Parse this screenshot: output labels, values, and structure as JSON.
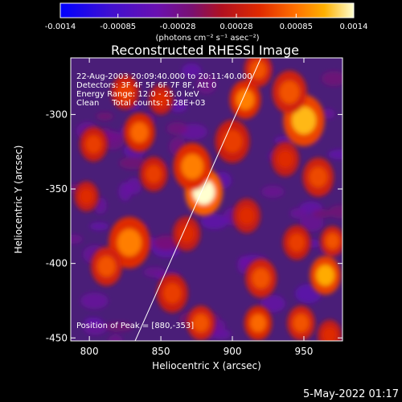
{
  "colorbar": {
    "ticks": [
      "-0.0014",
      "-0.00085",
      "-0.00028",
      "0.00028",
      "0.00085",
      "0.0014"
    ],
    "tick_values": [
      -0.0014,
      -0.00085,
      -0.00028,
      0.00028,
      0.00085,
      0.0014
    ],
    "range": [
      -0.0014,
      0.0014
    ],
    "unit_label": "(photons cm⁻² s⁻¹ asec⁻²)"
  },
  "plot": {
    "title": "Reconstructed RHESSI Image",
    "info_lines": [
      "22-Aug-2003 20:09:40.000 to 20:11:40.000",
      "Detectors: 3F 4F 5F 6F 7F 8F, Att 0",
      "Energy Range: 12.0 - 25.0 keV",
      "Clean     Total counts: 1.28E+03"
    ],
    "peak_text": "Position of Peak = [880,-353]"
  },
  "chart_data": {
    "type": "heatmap",
    "title": "Reconstructed RHESSI Image",
    "xlabel": "Heliocentric X (arcsec)",
    "ylabel": "Heliocentric Y (arcsec)",
    "xlim": [
      787,
      977
    ],
    "ylim": [
      -452,
      -262
    ],
    "x_ticks": [
      800,
      850,
      900,
      950
    ],
    "y_ticks": [
      -300,
      -350,
      -400,
      -450
    ],
    "x_tick_labels": [
      "800",
      "850",
      "900",
      "950"
    ],
    "y_tick_labels": [
      "-300",
      "-350",
      "-400",
      "-450"
    ],
    "peak": {
      "x": 880,
      "y": -353
    },
    "limb_line": [
      [
        832,
        -452
      ],
      [
        920,
        -262
      ]
    ],
    "blobs": [
      {
        "x": 880,
        "y": -352,
        "r": 11,
        "v": 0.0014
      },
      {
        "x": 872,
        "y": -335,
        "r": 11,
        "v": 0.0009
      },
      {
        "x": 950,
        "y": -304,
        "r": 12,
        "v": 0.00115
      },
      {
        "x": 940,
        "y": -285,
        "r": 10,
        "v": 0.0007
      },
      {
        "x": 960,
        "y": -342,
        "r": 9,
        "v": 0.00065
      },
      {
        "x": 937,
        "y": -330,
        "r": 8,
        "v": 0.0005
      },
      {
        "x": 909,
        "y": -290,
        "r": 9,
        "v": 0.0009
      },
      {
        "x": 918,
        "y": -270,
        "r": 8,
        "v": 0.0007
      },
      {
        "x": 900,
        "y": -318,
        "r": 10,
        "v": 0.0006
      },
      {
        "x": 835,
        "y": -312,
        "r": 9,
        "v": 0.0008
      },
      {
        "x": 825,
        "y": -285,
        "r": 8,
        "v": 0.0006
      },
      {
        "x": 850,
        "y": -290,
        "r": 7,
        "v": 0.0005
      },
      {
        "x": 845,
        "y": -340,
        "r": 8,
        "v": 0.0006
      },
      {
        "x": 803,
        "y": -320,
        "r": 8,
        "v": 0.0006
      },
      {
        "x": 798,
        "y": -355,
        "r": 7,
        "v": 0.0005
      },
      {
        "x": 828,
        "y": -386,
        "r": 12,
        "v": 0.0009
      },
      {
        "x": 812,
        "y": -402,
        "r": 9,
        "v": 0.0007
      },
      {
        "x": 868,
        "y": -380,
        "r": 8,
        "v": 0.0005
      },
      {
        "x": 858,
        "y": -420,
        "r": 9,
        "v": 0.0006
      },
      {
        "x": 878,
        "y": -440,
        "r": 8,
        "v": 0.0007
      },
      {
        "x": 910,
        "y": -368,
        "r": 8,
        "v": 0.0005
      },
      {
        "x": 920,
        "y": -410,
        "r": 9,
        "v": 0.0007
      },
      {
        "x": 918,
        "y": -440,
        "r": 8,
        "v": 0.0008
      },
      {
        "x": 945,
        "y": -386,
        "r": 8,
        "v": 0.0006
      },
      {
        "x": 965,
        "y": -408,
        "r": 9,
        "v": 0.0011
      },
      {
        "x": 970,
        "y": -385,
        "r": 7,
        "v": 0.0007
      },
      {
        "x": 948,
        "y": -440,
        "r": 8,
        "v": 0.0007
      },
      {
        "x": 968,
        "y": -448,
        "r": 7,
        "v": 0.0005
      }
    ]
  },
  "footer": {
    "date": "5-May-2022 01:17"
  }
}
